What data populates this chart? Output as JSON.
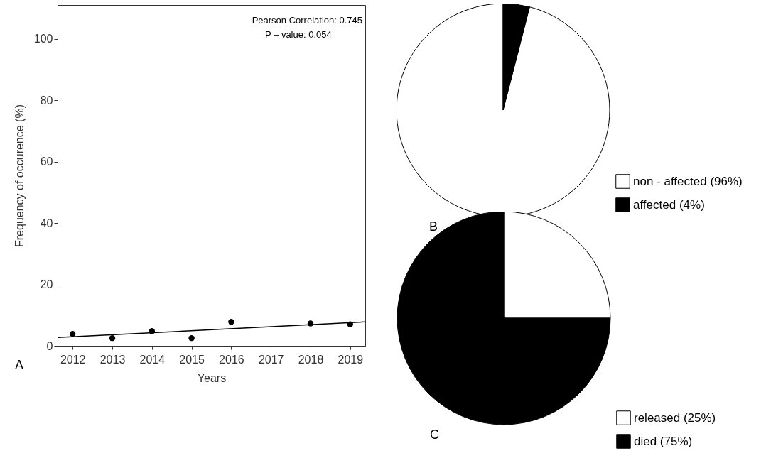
{
  "chart_data": [
    {
      "type": "scatter",
      "xlabel": "Years",
      "ylabel": "Frequency of occurence (%)",
      "xlim": [
        2011.62,
        2019.38
      ],
      "xticks": [
        2012,
        2013,
        2014,
        2015,
        2016,
        2017,
        2018,
        2019
      ],
      "ylim": [
        0,
        111
      ],
      "yticks": [
        0,
        20,
        40,
        60,
        80,
        100
      ],
      "grid": false,
      "annotations": [
        "Pearson Correlation: 0.745",
        "P – value: 0.054",
        "A"
      ],
      "series": [
        {
          "type": "scatter",
          "marker": "circle",
          "color": "#000000",
          "x": [
            2012,
            2013,
            2014,
            2015,
            2016,
            2018,
            2019
          ],
          "values": [
            3.9,
            2.5,
            4.8,
            2.5,
            7.8,
            7.3,
            7.0
          ]
        },
        {
          "type": "line",
          "color": "#000000",
          "x": [
            2011.62,
            2019.38
          ],
          "values": [
            2.7,
            7.8
          ]
        }
      ]
    },
    {
      "type": "pie",
      "categories": [
        "non - affected (96%)",
        "affected (4%)"
      ],
      "values": [
        96,
        4
      ],
      "colors": [
        "#ffffff",
        "#000000"
      ],
      "legend": "bottom right",
      "annotations": [
        "B"
      ]
    },
    {
      "type": "pie",
      "categories": [
        "released (25%)",
        "died (75%)"
      ],
      "values": [
        25,
        75
      ],
      "colors": [
        "#ffffff",
        "#000000"
      ],
      "legend": "bottom right",
      "annotations": [
        "C"
      ]
    }
  ]
}
